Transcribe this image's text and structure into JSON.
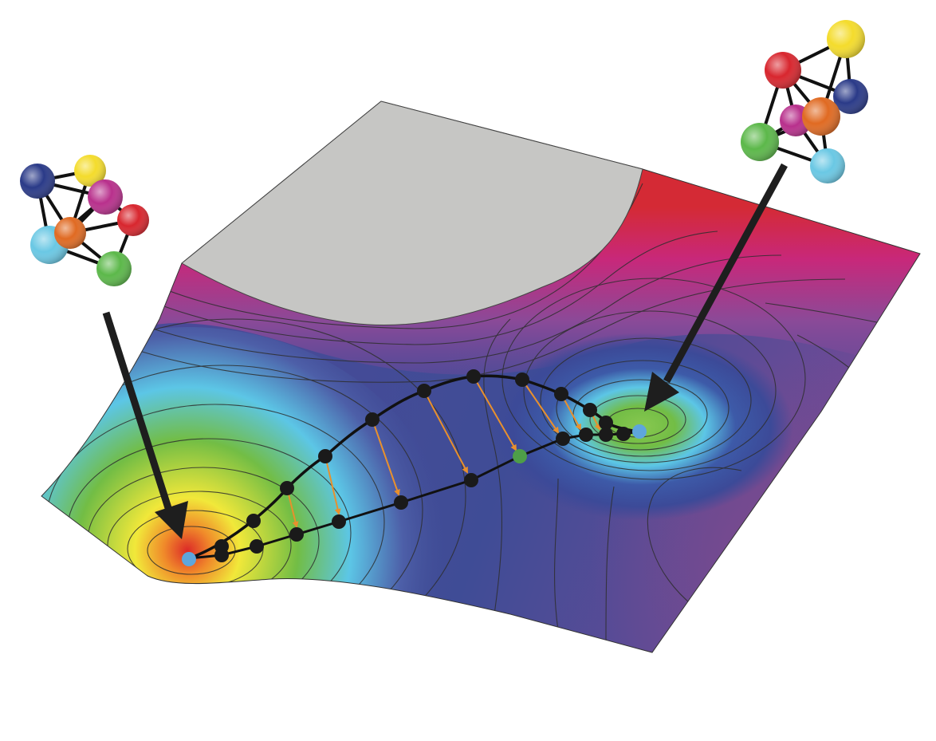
{
  "colors": {
    "background": "#ffffff",
    "plateau": "#c6c6c4",
    "ridge_red": "#d42a35",
    "ridge_magenta": "#c8287a",
    "surface_purple": "#7a4a96",
    "surface_blue": "#3f4c96",
    "surface_cyan": "#5cc6e6",
    "surface_green": "#72bd45",
    "surface_yellow": "#f1e83a",
    "surface_orange": "#f08a2a",
    "basin_red": "#dc2a28",
    "contour_line": "#2e2e2e",
    "path_node": "#1a1a1a",
    "path_line": "#111111",
    "projection_arrow": "#e8902d",
    "endpoint_marker": "#5ea6dc",
    "saddle_marker": "#4e9e48",
    "pointer_arrow": "#1e1e1e"
  },
  "icons": {
    "left_cluster": "atomic-cluster-left-icon",
    "right_cluster": "atomic-cluster-right-icon",
    "left_pointer": "arrow-down-left-icon",
    "right_pointer": "arrow-down-right-icon"
  },
  "atom_colors": {
    "red": "#d8262e",
    "yellow": "#f4dc2c",
    "navy": "#2a3a88",
    "magenta": "#b8308c",
    "orange": "#e06a22",
    "green": "#5cb84a",
    "cyan": "#6ac8e4"
  }
}
